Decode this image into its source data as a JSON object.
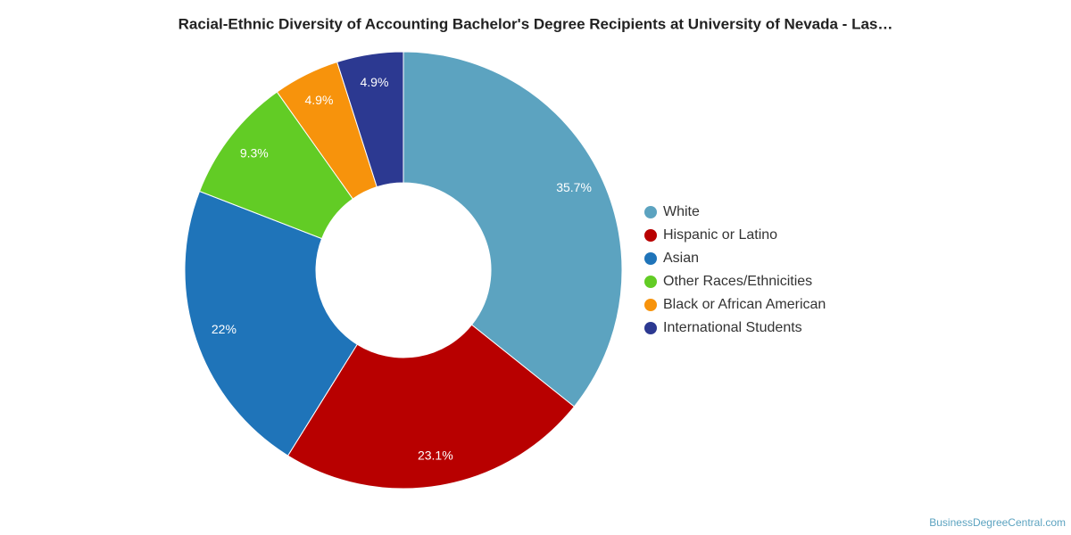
{
  "chart_data": {
    "type": "donut",
    "title": "Racial-Ethnic Diversity of Accounting Bachelor's Degree Recipients at University of Nevada - Las…",
    "categories": [
      "White",
      "Hispanic or Latino",
      "Asian",
      "Other Races/Ethnicities",
      "Black or African American",
      "International Students"
    ],
    "values": [
      35.7,
      23.1,
      22,
      9.3,
      4.9,
      4.9
    ],
    "value_labels": [
      "35.7%",
      "23.1%",
      "22%",
      "9.3%",
      "4.9%",
      "4.9%"
    ],
    "colors": [
      "#5ca3c0",
      "#b80000",
      "#1f74b9",
      "#62cc25",
      "#f7930c",
      "#2c3991"
    ],
    "legend": "right",
    "credit": "BusinessDegreeCentral.com"
  }
}
